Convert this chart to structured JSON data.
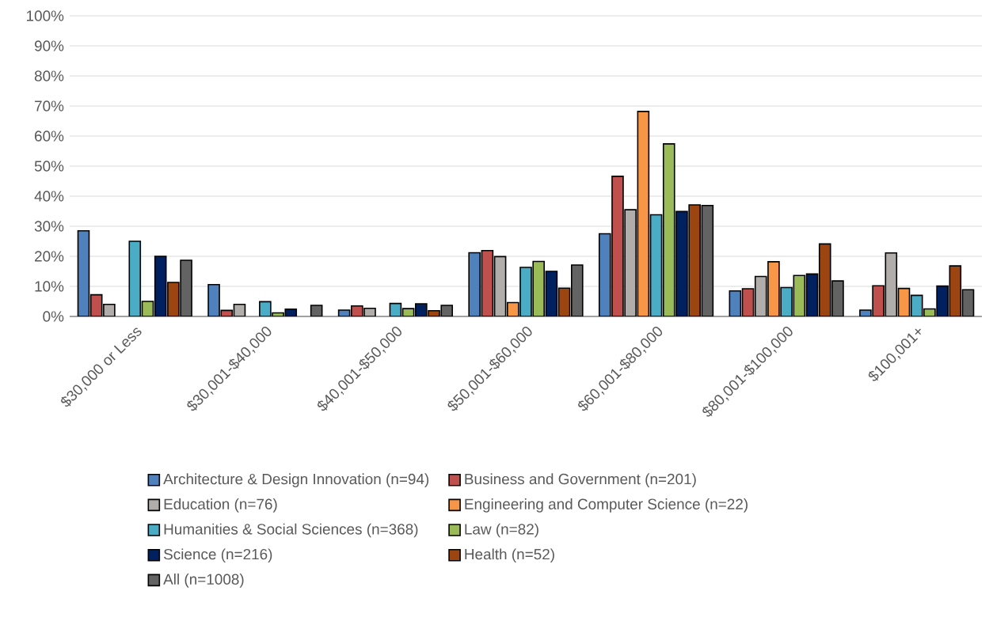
{
  "chart_data": {
    "type": "bar",
    "categories": [
      "$30,000 or Less",
      "$30,001-$40,000",
      "$40,001-$50,000",
      "$50,001-$60,000",
      "$60,001-$80,000",
      "$80,001-$100,000",
      "$100,001+"
    ],
    "series": [
      {
        "name": "Architecture & Design Innovation (n=94)",
        "color": "#4f81bd",
        "values": [
          28.5,
          10.6,
          2.1,
          21.2,
          27.5,
          8.5,
          2.1
        ]
      },
      {
        "name": "Business and Government (n=201)",
        "color": "#c0504d",
        "values": [
          7.2,
          2.0,
          3.5,
          21.9,
          46.6,
          9.2,
          10.2
        ]
      },
      {
        "name": "Education (n=76)",
        "color": "#b0adab",
        "values": [
          4.0,
          4.0,
          2.7,
          19.9,
          35.5,
          13.3,
          21.1
        ]
      },
      {
        "name": "Engineering and Computer Science (n=22)",
        "color": "#f79646",
        "values": [
          null,
          null,
          null,
          4.6,
          68.2,
          18.2,
          9.3
        ]
      },
      {
        "name": "Humanities & Social Sciences (n=368)",
        "color": "#4bacc6",
        "values": [
          25.0,
          4.9,
          4.3,
          16.3,
          33.8,
          9.6,
          7.0
        ]
      },
      {
        "name": "Law (n=82)",
        "color": "#9bbb59",
        "values": [
          5.0,
          1.2,
          2.6,
          18.3,
          57.4,
          13.6,
          2.5
        ]
      },
      {
        "name": "Science (n=216)",
        "color": "#002060",
        "values": [
          20.0,
          2.4,
          4.2,
          15.0,
          34.9,
          14.1,
          10.1
        ]
      },
      {
        "name": "Health (n=52)",
        "color": "#9c4510",
        "values": [
          11.3,
          null,
          1.9,
          9.4,
          37.1,
          24.1,
          16.8
        ]
      },
      {
        "name": "All (n=1008)",
        "color": "#636363",
        "values": [
          18.7,
          3.7,
          3.7,
          17.1,
          36.9,
          11.8,
          8.9
        ]
      }
    ],
    "ylim": [
      0,
      100
    ],
    "yticks": [
      {
        "value": 0,
        "label": "0%"
      },
      {
        "value": 10,
        "label": "10%"
      },
      {
        "value": 20,
        "label": "20%"
      },
      {
        "value": 30,
        "label": "30%"
      },
      {
        "value": 40,
        "label": "40%"
      },
      {
        "value": 50,
        "label": "50%"
      },
      {
        "value": 60,
        "label": "60%"
      },
      {
        "value": 70,
        "label": "70%"
      },
      {
        "value": 80,
        "label": "80%"
      },
      {
        "value": 90,
        "label": "90%"
      },
      {
        "value": 100,
        "label": "100%"
      }
    ],
    "grid": "y",
    "legend": "bottom"
  }
}
